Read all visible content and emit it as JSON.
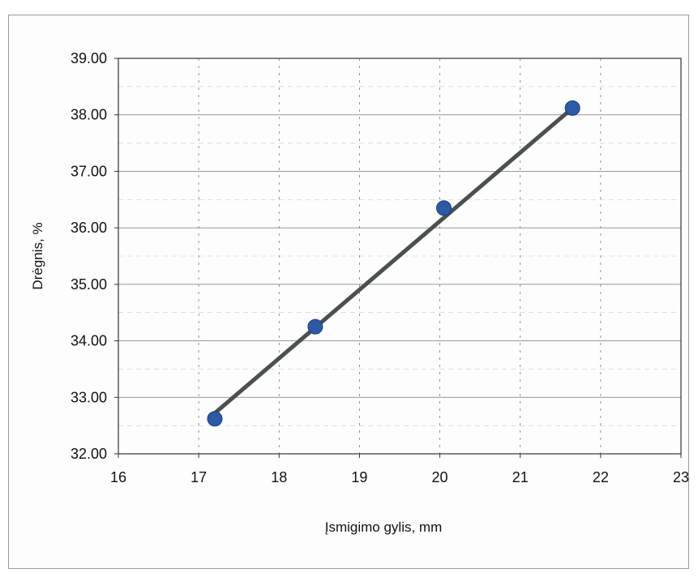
{
  "chart_data": {
    "type": "scatter",
    "title": "",
    "xlabel": "Įsmigimo gylis, mm",
    "ylabel": "Drėgnis, %",
    "xlim": [
      16,
      23
    ],
    "ylim": [
      32,
      39
    ],
    "x_ticks": [
      "16",
      "17",
      "18",
      "19",
      "20",
      "21",
      "22",
      "23"
    ],
    "y_ticks": [
      "32.00",
      "33.00",
      "34.00",
      "35.00",
      "36.00",
      "37.00",
      "38.00",
      "39.00"
    ],
    "grid": true,
    "legend": "none",
    "series": [
      {
        "x": [
          17.2,
          18.45,
          20.05,
          21.65
        ],
        "y": [
          32.62,
          34.25,
          36.35,
          38.12
        ],
        "color": "#2a5aa8"
      }
    ],
    "trendline": {
      "x": [
        17.2,
        21.65
      ],
      "y": [
        32.72,
        38.12
      ],
      "color": "#4a4f4f"
    }
  }
}
